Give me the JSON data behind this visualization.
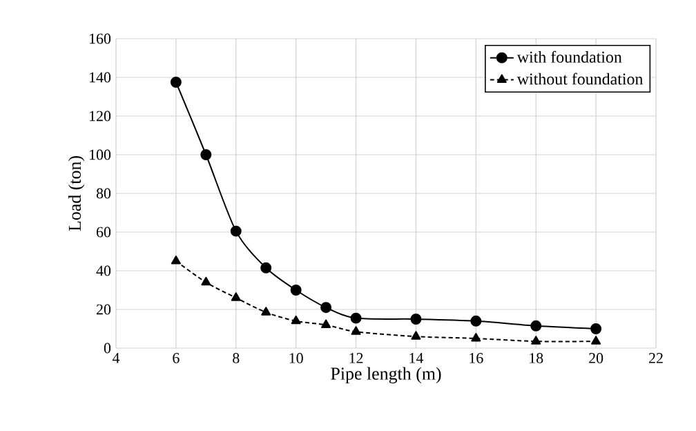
{
  "chart_data": {
    "type": "line",
    "xlabel": "Pipe length (m)",
    "ylabel": "Load (ton)",
    "x": [
      6,
      7,
      8,
      9,
      10,
      11,
      12,
      14,
      16,
      18,
      20
    ],
    "series": [
      {
        "name": "with foundation",
        "color": "#000000",
        "marker": "circle",
        "line_style": "solid",
        "values": [
          137.5,
          100,
          60.5,
          41.5,
          30,
          21,
          15.5,
          15,
          14,
          11.5,
          10
        ]
      },
      {
        "name": "without foundation",
        "color": "#000000",
        "marker": "triangle",
        "line_style": "dashed",
        "values": [
          45,
          34,
          26,
          18.5,
          14,
          12,
          8.5,
          6,
          5,
          3.5,
          3.5
        ]
      }
    ],
    "xlim": [
      4,
      22
    ],
    "xticks": [
      4,
      6,
      8,
      10,
      12,
      14,
      16,
      18,
      20,
      22
    ],
    "ylim": [
      0,
      160
    ],
    "yticks": [
      0,
      20,
      40,
      60,
      80,
      100,
      120,
      140,
      160
    ],
    "grid": true,
    "legend": "top right"
  }
}
